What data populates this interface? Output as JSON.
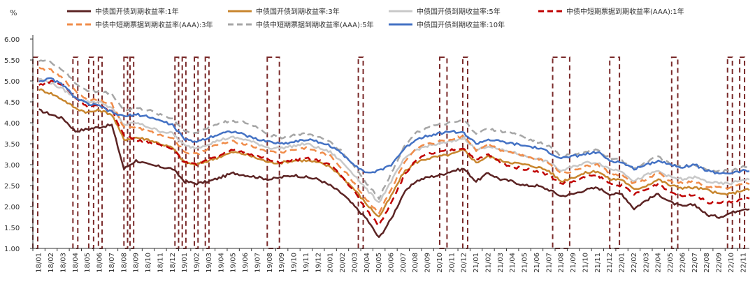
{
  "chart_data": {
    "type": "line",
    "unit_label": "%",
    "ylim": [
      1.0,
      6.0
    ],
    "y_ticks": [
      "1.00",
      "1.50",
      "2.00",
      "2.50",
      "3.00",
      "3.50",
      "4.00",
      "4.50",
      "5.00",
      "5.50",
      "6.00"
    ],
    "x_labels": [
      "18/01",
      "18/02",
      "18/03",
      "18/04",
      "18/05",
      "18/06",
      "18/07",
      "18/08",
      "18/09",
      "18/10",
      "18/11",
      "18/12",
      "19/01",
      "19/02",
      "19/03",
      "19/04",
      "19/05",
      "19/06",
      "19/07",
      "19/08",
      "19/09",
      "19/10",
      "19/11",
      "19/12",
      "20/01",
      "20/02",
      "20/03",
      "20/04",
      "20/05",
      "20/06",
      "20/07",
      "20/08",
      "20/09",
      "20/10",
      "20/11",
      "20/12",
      "21/01",
      "21/02",
      "21/03",
      "21/04",
      "21/05",
      "21/06",
      "21/07",
      "21/08",
      "21/09",
      "21/10",
      "21/11",
      "21/12",
      "22/01",
      "22/02",
      "22/03",
      "22/04",
      "22/05",
      "22/06",
      "22/07",
      "22/08",
      "22/09",
      "22/10",
      "22/11"
    ],
    "grid": false,
    "legend_position": "top",
    "series": [
      {
        "name": "中债国开债到期收益率:1年",
        "color": "#5c2424",
        "dash": "solid",
        "values": [
          4.3,
          4.2,
          4.1,
          3.8,
          3.85,
          3.9,
          3.95,
          2.9,
          3.1,
          3.0,
          2.95,
          2.9,
          2.6,
          2.55,
          2.6,
          2.7,
          2.8,
          2.75,
          2.7,
          2.65,
          2.7,
          2.75,
          2.7,
          2.65,
          2.5,
          2.3,
          2.0,
          1.7,
          1.25,
          1.7,
          2.3,
          2.6,
          2.7,
          2.75,
          2.85,
          2.9,
          2.6,
          2.8,
          2.65,
          2.6,
          2.5,
          2.5,
          2.4,
          2.25,
          2.3,
          2.4,
          2.45,
          2.3,
          2.3,
          1.95,
          2.15,
          2.3,
          2.1,
          2.0,
          2.05,
          1.8,
          1.75,
          1.85,
          1.95
        ]
      },
      {
        "name": "中债国开债到期收益率:3年",
        "color": "#c8862e",
        "dash": "solid",
        "values": [
          4.8,
          4.7,
          4.55,
          4.35,
          4.25,
          4.3,
          4.2,
          3.6,
          3.65,
          3.6,
          3.5,
          3.4,
          3.05,
          3.0,
          3.1,
          3.2,
          3.3,
          3.25,
          3.15,
          3.05,
          3.05,
          3.1,
          3.1,
          3.05,
          2.95,
          2.7,
          2.4,
          2.05,
          1.75,
          2.25,
          2.8,
          3.05,
          3.15,
          3.2,
          3.25,
          3.35,
          3.05,
          3.2,
          3.1,
          3.05,
          3.0,
          2.95,
          2.85,
          2.6,
          2.7,
          2.8,
          2.85,
          2.65,
          2.65,
          2.4,
          2.5,
          2.65,
          2.5,
          2.45,
          2.45,
          2.4,
          2.3,
          2.3,
          2.4
        ]
      },
      {
        "name": "中债国开债到期收益率:5年",
        "color": "#c8c8c8",
        "dash": "solid",
        "values": [
          5.05,
          4.95,
          4.8,
          4.6,
          4.5,
          4.5,
          4.35,
          3.95,
          4.0,
          3.9,
          3.8,
          3.75,
          3.45,
          3.4,
          3.5,
          3.6,
          3.65,
          3.6,
          3.5,
          3.4,
          3.4,
          3.45,
          3.5,
          3.4,
          3.3,
          3.05,
          2.75,
          2.4,
          2.1,
          2.6,
          3.1,
          3.35,
          3.45,
          3.5,
          3.55,
          3.65,
          3.35,
          3.45,
          3.35,
          3.3,
          3.2,
          3.15,
          3.05,
          2.85,
          2.95,
          3.05,
          3.05,
          2.9,
          2.85,
          2.6,
          2.75,
          2.85,
          2.7,
          2.65,
          2.7,
          2.6,
          2.55,
          2.55,
          2.65
        ]
      },
      {
        "name": "中债中短期票据到期收益率(AAA):1年",
        "color": "#c00000",
        "dash": "dash",
        "values": [
          4.9,
          5.0,
          4.9,
          4.6,
          4.4,
          4.4,
          4.3,
          3.7,
          3.6,
          3.55,
          3.45,
          3.4,
          3.05,
          3.0,
          3.15,
          3.25,
          3.35,
          3.3,
          3.2,
          3.1,
          3.05,
          3.1,
          3.15,
          3.1,
          3.0,
          2.7,
          2.35,
          1.9,
          1.55,
          2.1,
          2.7,
          3.1,
          3.25,
          3.3,
          3.35,
          3.4,
          3.1,
          3.25,
          3.05,
          2.95,
          2.9,
          2.85,
          2.75,
          2.55,
          2.6,
          2.7,
          2.75,
          2.55,
          2.5,
          2.3,
          2.4,
          2.55,
          2.35,
          2.25,
          2.3,
          2.1,
          2.1,
          2.1,
          2.2
        ]
      },
      {
        "name": "中债中短期票据到期收益率(AAA):3年",
        "color": "#f08c4a",
        "dash": "dash",
        "values": [
          5.3,
          5.25,
          5.05,
          4.75,
          4.55,
          4.55,
          4.45,
          3.9,
          3.9,
          3.8,
          3.7,
          3.65,
          3.3,
          3.25,
          3.4,
          3.5,
          3.55,
          3.5,
          3.4,
          3.3,
          3.3,
          3.35,
          3.4,
          3.3,
          3.2,
          2.9,
          2.55,
          2.15,
          1.85,
          2.4,
          3.0,
          3.35,
          3.5,
          3.55,
          3.6,
          3.7,
          3.35,
          3.5,
          3.35,
          3.3,
          3.2,
          3.15,
          3.05,
          2.8,
          2.85,
          2.95,
          3.0,
          2.8,
          2.75,
          2.55,
          2.65,
          2.8,
          2.6,
          2.55,
          2.6,
          2.45,
          2.45,
          2.45,
          2.55
        ]
      },
      {
        "name": "中债中短期票据到期收益率(AAA):5年",
        "color": "#a6a6a6",
        "dash": "dash",
        "values": [
          5.5,
          5.45,
          5.25,
          4.95,
          4.75,
          4.75,
          4.7,
          4.3,
          4.35,
          4.3,
          4.2,
          4.1,
          3.8,
          3.75,
          3.9,
          4.0,
          4.05,
          4.0,
          3.9,
          3.7,
          3.65,
          3.7,
          3.75,
          3.65,
          3.55,
          3.3,
          2.95,
          2.55,
          2.2,
          2.8,
          3.4,
          3.75,
          3.9,
          3.95,
          4.0,
          4.05,
          3.75,
          3.85,
          3.8,
          3.75,
          3.65,
          3.55,
          3.45,
          3.2,
          3.25,
          3.3,
          3.35,
          3.15,
          3.1,
          2.9,
          3.05,
          3.2,
          3.0,
          2.95,
          3.0,
          2.9,
          2.85,
          2.85,
          2.95
        ]
      },
      {
        "name": "中债国开债到期收益率:10年",
        "color": "#4472c4",
        "dash": "solid",
        "values": [
          5.0,
          5.05,
          4.9,
          4.6,
          4.45,
          4.4,
          4.25,
          4.15,
          4.2,
          4.15,
          4.05,
          3.95,
          3.6,
          3.55,
          3.65,
          3.75,
          3.8,
          3.7,
          3.6,
          3.55,
          3.5,
          3.55,
          3.6,
          3.55,
          3.45,
          3.25,
          3.0,
          2.8,
          2.85,
          3.0,
          3.35,
          3.6,
          3.7,
          3.75,
          3.8,
          3.75,
          3.5,
          3.6,
          3.55,
          3.5,
          3.45,
          3.4,
          3.3,
          3.15,
          3.2,
          3.25,
          3.3,
          3.1,
          3.05,
          2.9,
          3.0,
          3.1,
          3.0,
          2.95,
          3.0,
          2.85,
          2.8,
          2.8,
          2.85
        ]
      }
    ]
  }
}
